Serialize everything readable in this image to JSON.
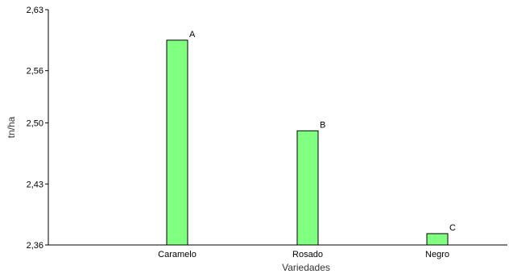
{
  "chart_data": {
    "type": "bar",
    "xlabel": "Variedades",
    "ylabel": "tn/ha",
    "categories": [
      "Caramelo",
      "Rosado",
      "Negro"
    ],
    "values": [
      2.595,
      2.491,
      2.373
    ],
    "group_letters": [
      "A",
      "B",
      "C"
    ],
    "yticks": [
      "2,36",
      "2,43",
      "2,50",
      "2,56",
      "2,63"
    ],
    "ytick_values": [
      2.36,
      2.43,
      2.5,
      2.56,
      2.63
    ],
    "ylim": [
      2.36,
      2.63
    ],
    "grid": false,
    "legend": "none",
    "colors": {
      "bar_fill": "#80ff80",
      "bar_stroke": "#000000",
      "axis": "#000000"
    }
  }
}
